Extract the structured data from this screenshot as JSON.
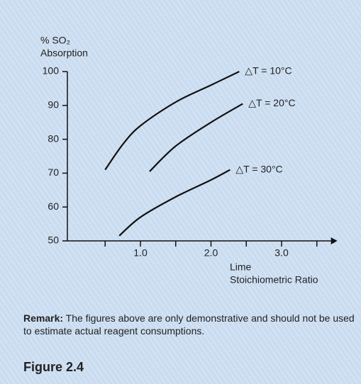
{
  "chart_data": {
    "type": "line",
    "ylabel": [
      "% SO₂",
      "Absorption"
    ],
    "xlabel": [
      "Lime",
      "Stoichiometric Ratio"
    ],
    "xlim": [
      0,
      3.7
    ],
    "ylim": [
      50,
      100
    ],
    "xticks": [
      {
        "value": 1,
        "label": "1.0"
      },
      {
        "value": 2,
        "label": "2.0"
      },
      {
        "value": 3,
        "label": "3.0"
      }
    ],
    "xminorticks": [
      0.5,
      1.5,
      2.5,
      3.5
    ],
    "yticks": [
      50,
      60,
      70,
      80,
      90,
      100
    ],
    "series": [
      {
        "name": "△T = 10°C",
        "color": "#111111",
        "x": [
          0.5,
          0.75,
          1.0,
          1.5,
          2.0,
          2.4
        ],
        "values": [
          71,
          78.5,
          84,
          91,
          96,
          100
        ]
      },
      {
        "name": "△T = 20°C",
        "color": "#111111",
        "x": [
          1.13,
          1.5,
          2.0,
          2.45
        ],
        "values": [
          70.5,
          78,
          85,
          90.5
        ]
      },
      {
        "name": "△T = 30°C",
        "color": "#111111",
        "x": [
          0.7,
          1.0,
          1.5,
          2.0,
          2.27
        ],
        "values": [
          51.5,
          57,
          63,
          68,
          71
        ]
      }
    ]
  },
  "remark": {
    "label": "Remark:",
    "text": "The figures above are only demonstrative and should not be used to estimate actual reagent consumptions."
  },
  "figure": "Figure 2.4"
}
